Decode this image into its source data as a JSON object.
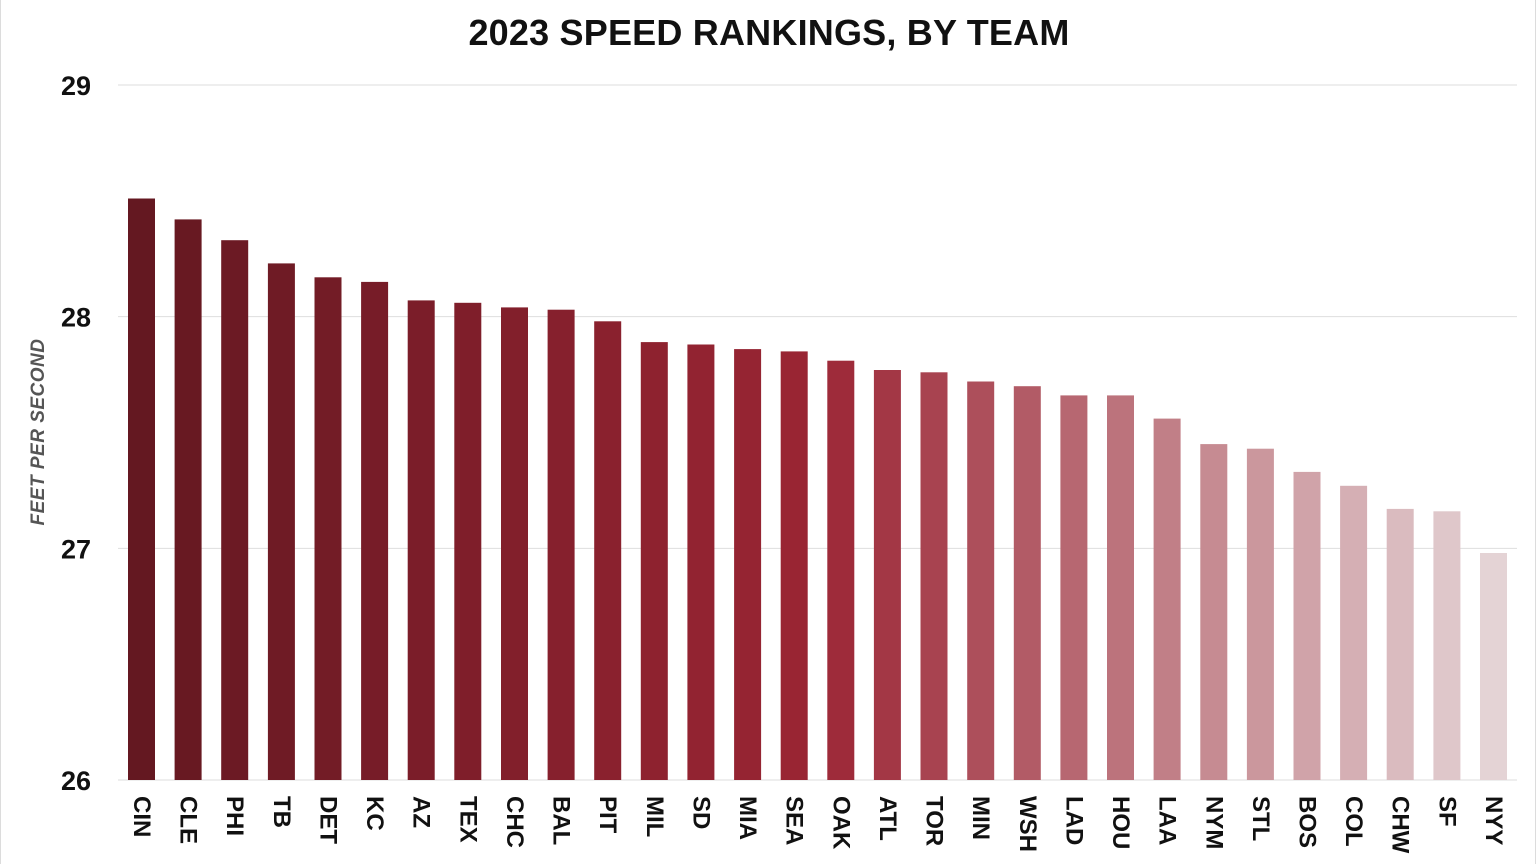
{
  "chart_data": {
    "type": "bar",
    "title": "2023 SPEED RANKINGS, BY TEAM",
    "ylabel": "FEET PER SECOND",
    "xlabel": "",
    "ylim": [
      26,
      29
    ],
    "yticks": [
      "26",
      "27",
      "28",
      "29"
    ],
    "grid": true,
    "categories": [
      "CIN",
      "CLE",
      "PHI",
      "TB",
      "DET",
      "KC",
      "AZ",
      "TEX",
      "CHC",
      "BAL",
      "PIT",
      "MIL",
      "SD",
      "MIA",
      "SEA",
      "OAK",
      "ATL",
      "TOR",
      "MIN",
      "WSH",
      "LAD",
      "HOU",
      "LAA",
      "NYM",
      "STL",
      "BOS",
      "COL",
      "CHW",
      "SF",
      "NYY"
    ],
    "values": [
      28.51,
      28.42,
      28.33,
      28.23,
      28.17,
      28.15,
      28.07,
      28.06,
      28.04,
      28.03,
      27.98,
      27.89,
      27.88,
      27.86,
      27.85,
      27.81,
      27.77,
      27.76,
      27.72,
      27.7,
      27.66,
      27.66,
      27.56,
      27.45,
      27.43,
      27.33,
      27.27,
      27.17,
      27.16,
      26.98
    ],
    "colors": {
      "dark": "#641821",
      "mid": "#9b2534",
      "light": "#e4d3d5"
    }
  }
}
